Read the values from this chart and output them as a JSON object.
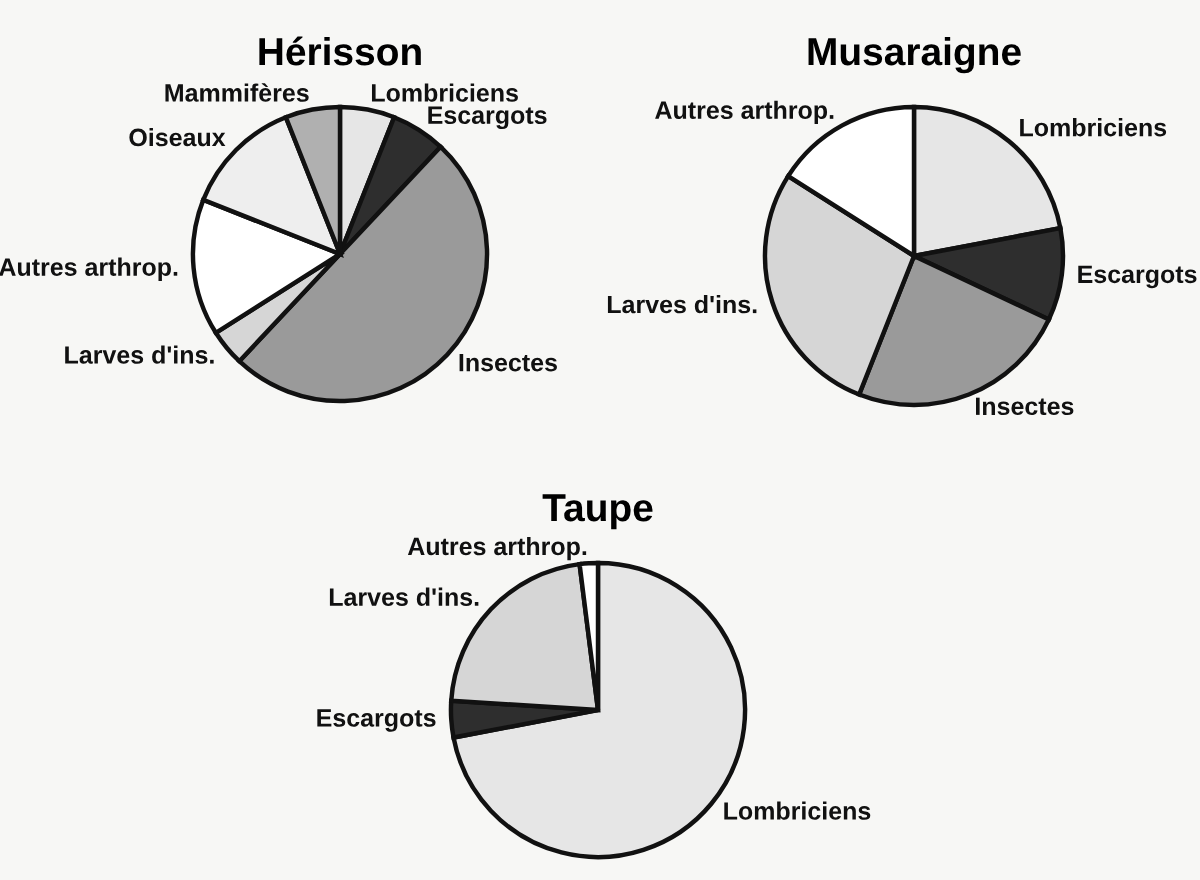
{
  "chart_data": [
    {
      "type": "pie",
      "title": "Hérisson",
      "categories": [
        "Lombriciens",
        "Escargots",
        "Insectes",
        "Larves d'ins.",
        "Autres arthrop.",
        "Oiseaux",
        "Mammifères"
      ],
      "values": [
        6,
        6,
        50,
        4,
        15,
        13,
        6
      ],
      "colors": [
        "#e6e6e6",
        "#2e2e2e",
        "#9a9a9a",
        "#d6d6d6",
        "#ffffff",
        "#eeeeee",
        "#b0b0b0"
      ]
    },
    {
      "type": "pie",
      "title": "Musaraigne",
      "categories": [
        "Lombriciens",
        "Escargots",
        "Insectes",
        "Larves d'ins.",
        "Autres arthrop."
      ],
      "values": [
        22,
        10,
        24,
        28,
        16
      ],
      "colors": [
        "#e6e6e6",
        "#2e2e2e",
        "#9a9a9a",
        "#d6d6d6",
        "#ffffff"
      ]
    },
    {
      "type": "pie",
      "title": "Taupe",
      "categories": [
        "Lombriciens",
        "Escargots",
        "Larves d'ins.",
        "Autres arthrop."
      ],
      "values": [
        72,
        4,
        22,
        2
      ],
      "colors": [
        "#e6e6e6",
        "#2e2e2e",
        "#d6d6d6",
        "#ffffff"
      ]
    }
  ]
}
